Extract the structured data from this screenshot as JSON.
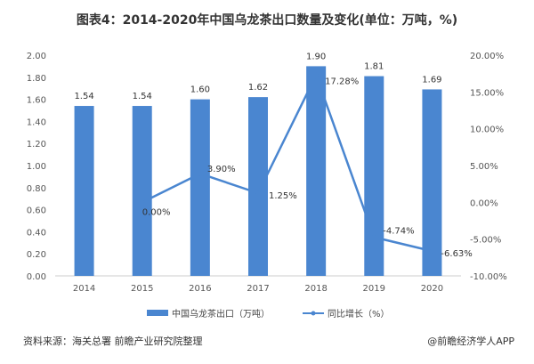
{
  "title": "图表4：2014-2020年中国乌龙茶出口数量及变化(单位：万吨，%)",
  "source": "资料来源：海关总署 前瞻产业研究院整理",
  "credit": "@前瞻经济学人APP",
  "colors": {
    "bar": "#4a86d0",
    "line": "#4a86d0"
  },
  "chart_data": {
    "type": "bar+line",
    "categories": [
      "2014",
      "2015",
      "2016",
      "2017",
      "2018",
      "2019",
      "2020"
    ],
    "series": [
      {
        "name": "中国乌龙茶出口（万吨）",
        "type": "bar",
        "axis": "left",
        "values": [
          1.54,
          1.54,
          1.6,
          1.62,
          1.9,
          1.81,
          1.69
        ],
        "labels": [
          "1.54",
          "1.54",
          "1.60",
          "1.62",
          "1.90",
          "1.81",
          "1.69"
        ]
      },
      {
        "name": "同比增长（%）",
        "type": "line",
        "axis": "right",
        "values": [
          null,
          0.0,
          3.9,
          1.25,
          17.28,
          -4.74,
          -6.63
        ],
        "labels": [
          "",
          "0.00%",
          "3.90%",
          "1.25%",
          "17.28%",
          "-4.74%",
          "-6.63%"
        ]
      }
    ],
    "left_axis": {
      "ylim": [
        0,
        2
      ],
      "ticks": [
        "0.00",
        "0.20",
        "0.40",
        "0.60",
        "0.80",
        "1.00",
        "1.20",
        "1.40",
        "1.60",
        "1.80",
        "2.00"
      ]
    },
    "right_axis": {
      "ylim": [
        -10,
        20
      ],
      "ticks": [
        "-10.00%",
        "-5.00%",
        "0.00%",
        "5.00%",
        "10.00%",
        "15.00%",
        "20.00%"
      ]
    },
    "grid": false,
    "legend": "bottom"
  }
}
